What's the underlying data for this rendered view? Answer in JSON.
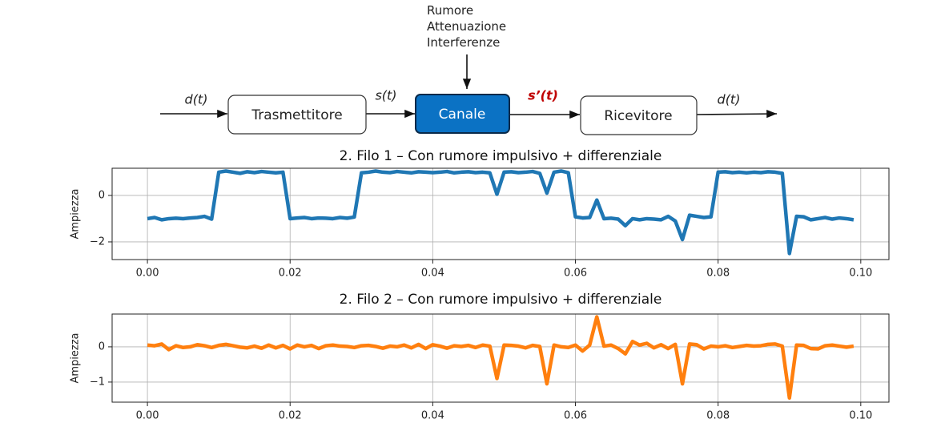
{
  "diagram": {
    "inputs": [
      "Rumore",
      "Attenuazione",
      "Interferenze"
    ],
    "nodes": [
      {
        "label": "Trasmettitore"
      },
      {
        "label": "Canale"
      },
      {
        "label": "Ricevitore"
      }
    ],
    "edges": [
      {
        "label": "d(t)"
      },
      {
        "label": "s(t)"
      },
      {
        "label": "s’(t)"
      },
      {
        "label": "d(t)"
      }
    ]
  },
  "chart_data": [
    {
      "type": "line",
      "title": "2. Filo 1 – Con rumore impulsivo + differenziale",
      "ylabel": "Ampiezza",
      "x": [
        0,
        0.001,
        0.002,
        0.003,
        0.004,
        0.005,
        0.006,
        0.007,
        0.008,
        0.009,
        0.01,
        0.011,
        0.012,
        0.013,
        0.014,
        0.015,
        0.016,
        0.017,
        0.018,
        0.019,
        0.02,
        0.021,
        0.022,
        0.023,
        0.024,
        0.025,
        0.026,
        0.027,
        0.028,
        0.029,
        0.03,
        0.031,
        0.032,
        0.033,
        0.034,
        0.035,
        0.036,
        0.037,
        0.038,
        0.039,
        0.04,
        0.041,
        0.042,
        0.043,
        0.044,
        0.045,
        0.046,
        0.047,
        0.048,
        0.049,
        0.05,
        0.051,
        0.052,
        0.053,
        0.054,
        0.055,
        0.056,
        0.057,
        0.058,
        0.059,
        0.06,
        0.061,
        0.062,
        0.063,
        0.064,
        0.065,
        0.066,
        0.067,
        0.068,
        0.069,
        0.07,
        0.071,
        0.072,
        0.073,
        0.074,
        0.075,
        0.076,
        0.077,
        0.078,
        0.079,
        0.08,
        0.081,
        0.082,
        0.083,
        0.084,
        0.085,
        0.086,
        0.087,
        0.088,
        0.089,
        0.09,
        0.091,
        0.092,
        0.093,
        0.094,
        0.095,
        0.096,
        0.097,
        0.098,
        0.099
      ],
      "series": [
        {
          "name": "Filo 1",
          "color": "#1f77b4",
          "values": [
            -1.0,
            -0.95,
            -1.05,
            -1.0,
            -0.98,
            -1.0,
            -0.97,
            -0.95,
            -0.9,
            -1.02,
            1.0,
            1.05,
            1.0,
            0.95,
            1.02,
            0.98,
            1.03,
            1.0,
            0.97,
            1.0,
            -1.0,
            -0.97,
            -0.95,
            -1.0,
            -0.97,
            -0.98,
            -1.0,
            -0.95,
            -0.98,
            -0.93,
            0.97,
            1.0,
            1.05,
            1.0,
            0.98,
            1.03,
            1.0,
            0.97,
            1.02,
            1.0,
            0.98,
            1.0,
            1.03,
            0.97,
            1.0,
            1.02,
            0.98,
            1.0,
            0.97,
            0.05,
            1.0,
            1.02,
            0.98,
            1.0,
            1.03,
            0.95,
            0.1,
            1.0,
            1.05,
            0.98,
            -0.92,
            -0.97,
            -0.95,
            -0.2,
            -1.0,
            -0.98,
            -1.02,
            -1.3,
            -1.0,
            -1.05,
            -1.0,
            -1.02,
            -1.05,
            -0.9,
            -1.1,
            -1.9,
            -0.85,
            -0.9,
            -0.95,
            -0.92,
            1.0,
            1.02,
            0.98,
            1.0,
            0.97,
            1.0,
            0.98,
            1.02,
            1.0,
            0.95,
            -2.5,
            -0.9,
            -0.92,
            -1.05,
            -1.0,
            -0.95,
            -1.02,
            -0.97,
            -1.0,
            -1.05
          ]
        }
      ],
      "xlim": [
        -0.00495,
        0.10395
      ],
      "ylim": [
        -2.76,
        1.17
      ],
      "xticks": [
        {
          "value": 0,
          "label": "0.00"
        },
        {
          "value": 0.02,
          "label": "0.02"
        },
        {
          "value": 0.04,
          "label": "0.04"
        },
        {
          "value": 0.06,
          "label": "0.06"
        },
        {
          "value": 0.08,
          "label": "0.08"
        },
        {
          "value": 0.1,
          "label": "0.10"
        }
      ],
      "yticks": [
        {
          "value": -2,
          "label": "−2"
        },
        0
      ],
      "grid": true
    },
    {
      "type": "line",
      "title": "2. Filo 2 – Con rumore impulsivo + differenziale",
      "ylabel": "Ampiezza",
      "x": [
        0,
        0.001,
        0.002,
        0.003,
        0.004,
        0.005,
        0.006,
        0.007,
        0.008,
        0.009,
        0.01,
        0.011,
        0.012,
        0.013,
        0.014,
        0.015,
        0.016,
        0.017,
        0.018,
        0.019,
        0.02,
        0.021,
        0.022,
        0.023,
        0.024,
        0.025,
        0.026,
        0.027,
        0.028,
        0.029,
        0.03,
        0.031,
        0.032,
        0.033,
        0.034,
        0.035,
        0.036,
        0.037,
        0.038,
        0.039,
        0.04,
        0.041,
        0.042,
        0.043,
        0.044,
        0.045,
        0.046,
        0.047,
        0.048,
        0.049,
        0.05,
        0.051,
        0.052,
        0.053,
        0.054,
        0.055,
        0.056,
        0.057,
        0.058,
        0.059,
        0.06,
        0.061,
        0.062,
        0.063,
        0.064,
        0.065,
        0.066,
        0.067,
        0.068,
        0.069,
        0.07,
        0.071,
        0.072,
        0.073,
        0.074,
        0.075,
        0.076,
        0.077,
        0.078,
        0.079,
        0.08,
        0.081,
        0.082,
        0.083,
        0.084,
        0.085,
        0.086,
        0.087,
        0.088,
        0.089,
        0.09,
        0.091,
        0.092,
        0.093,
        0.094,
        0.095,
        0.096,
        0.097,
        0.098,
        0.099
      ],
      "series": [
        {
          "name": "Filo 2",
          "color": "#ff7f0e",
          "values": [
            0.05,
            0.03,
            0.08,
            -0.08,
            0.03,
            -0.02,
            0.0,
            0.06,
            0.03,
            -0.02,
            0.04,
            0.07,
            0.03,
            -0.01,
            -0.03,
            0.02,
            -0.04,
            0.05,
            -0.03,
            0.04,
            -0.06,
            0.05,
            0.0,
            0.04,
            -0.05,
            0.03,
            0.05,
            0.02,
            0.01,
            -0.02,
            0.03,
            0.04,
            0.01,
            -0.04,
            0.02,
            0.0,
            0.05,
            -0.03,
            0.07,
            -0.05,
            0.06,
            0.02,
            -0.04,
            0.03,
            0.01,
            0.04,
            -0.02,
            0.05,
            0.02,
            -0.9,
            0.05,
            0.04,
            0.02,
            -0.03,
            0.04,
            0.01,
            -1.05,
            0.05,
            0.0,
            -0.02,
            0.05,
            -0.12,
            0.05,
            0.85,
            0.02,
            0.05,
            -0.05,
            -0.2,
            0.15,
            0.05,
            0.1,
            -0.03,
            0.06,
            -0.05,
            0.07,
            -1.05,
            0.08,
            0.06,
            -0.06,
            0.02,
            0.0,
            0.03,
            -0.02,
            0.01,
            0.04,
            0.02,
            0.03,
            0.07,
            0.08,
            0.02,
            -1.45,
            0.05,
            0.04,
            -0.05,
            -0.06,
            0.03,
            0.05,
            0.02,
            -0.01,
            0.02
          ]
        }
      ],
      "xlim": [
        -0.00495,
        0.10395
      ],
      "ylim": [
        -1.57,
        0.93
      ],
      "xticks": [
        {
          "value": 0,
          "label": "0.00"
        },
        {
          "value": 0.02,
          "label": "0.02"
        },
        {
          "value": 0.04,
          "label": "0.04"
        },
        {
          "value": 0.06,
          "label": "0.06"
        },
        {
          "value": 0.08,
          "label": "0.08"
        },
        {
          "value": 0.1,
          "label": "0.10"
        }
      ],
      "yticks": [
        {
          "value": -1,
          "label": "−1"
        },
        0
      ],
      "grid": true
    }
  ]
}
